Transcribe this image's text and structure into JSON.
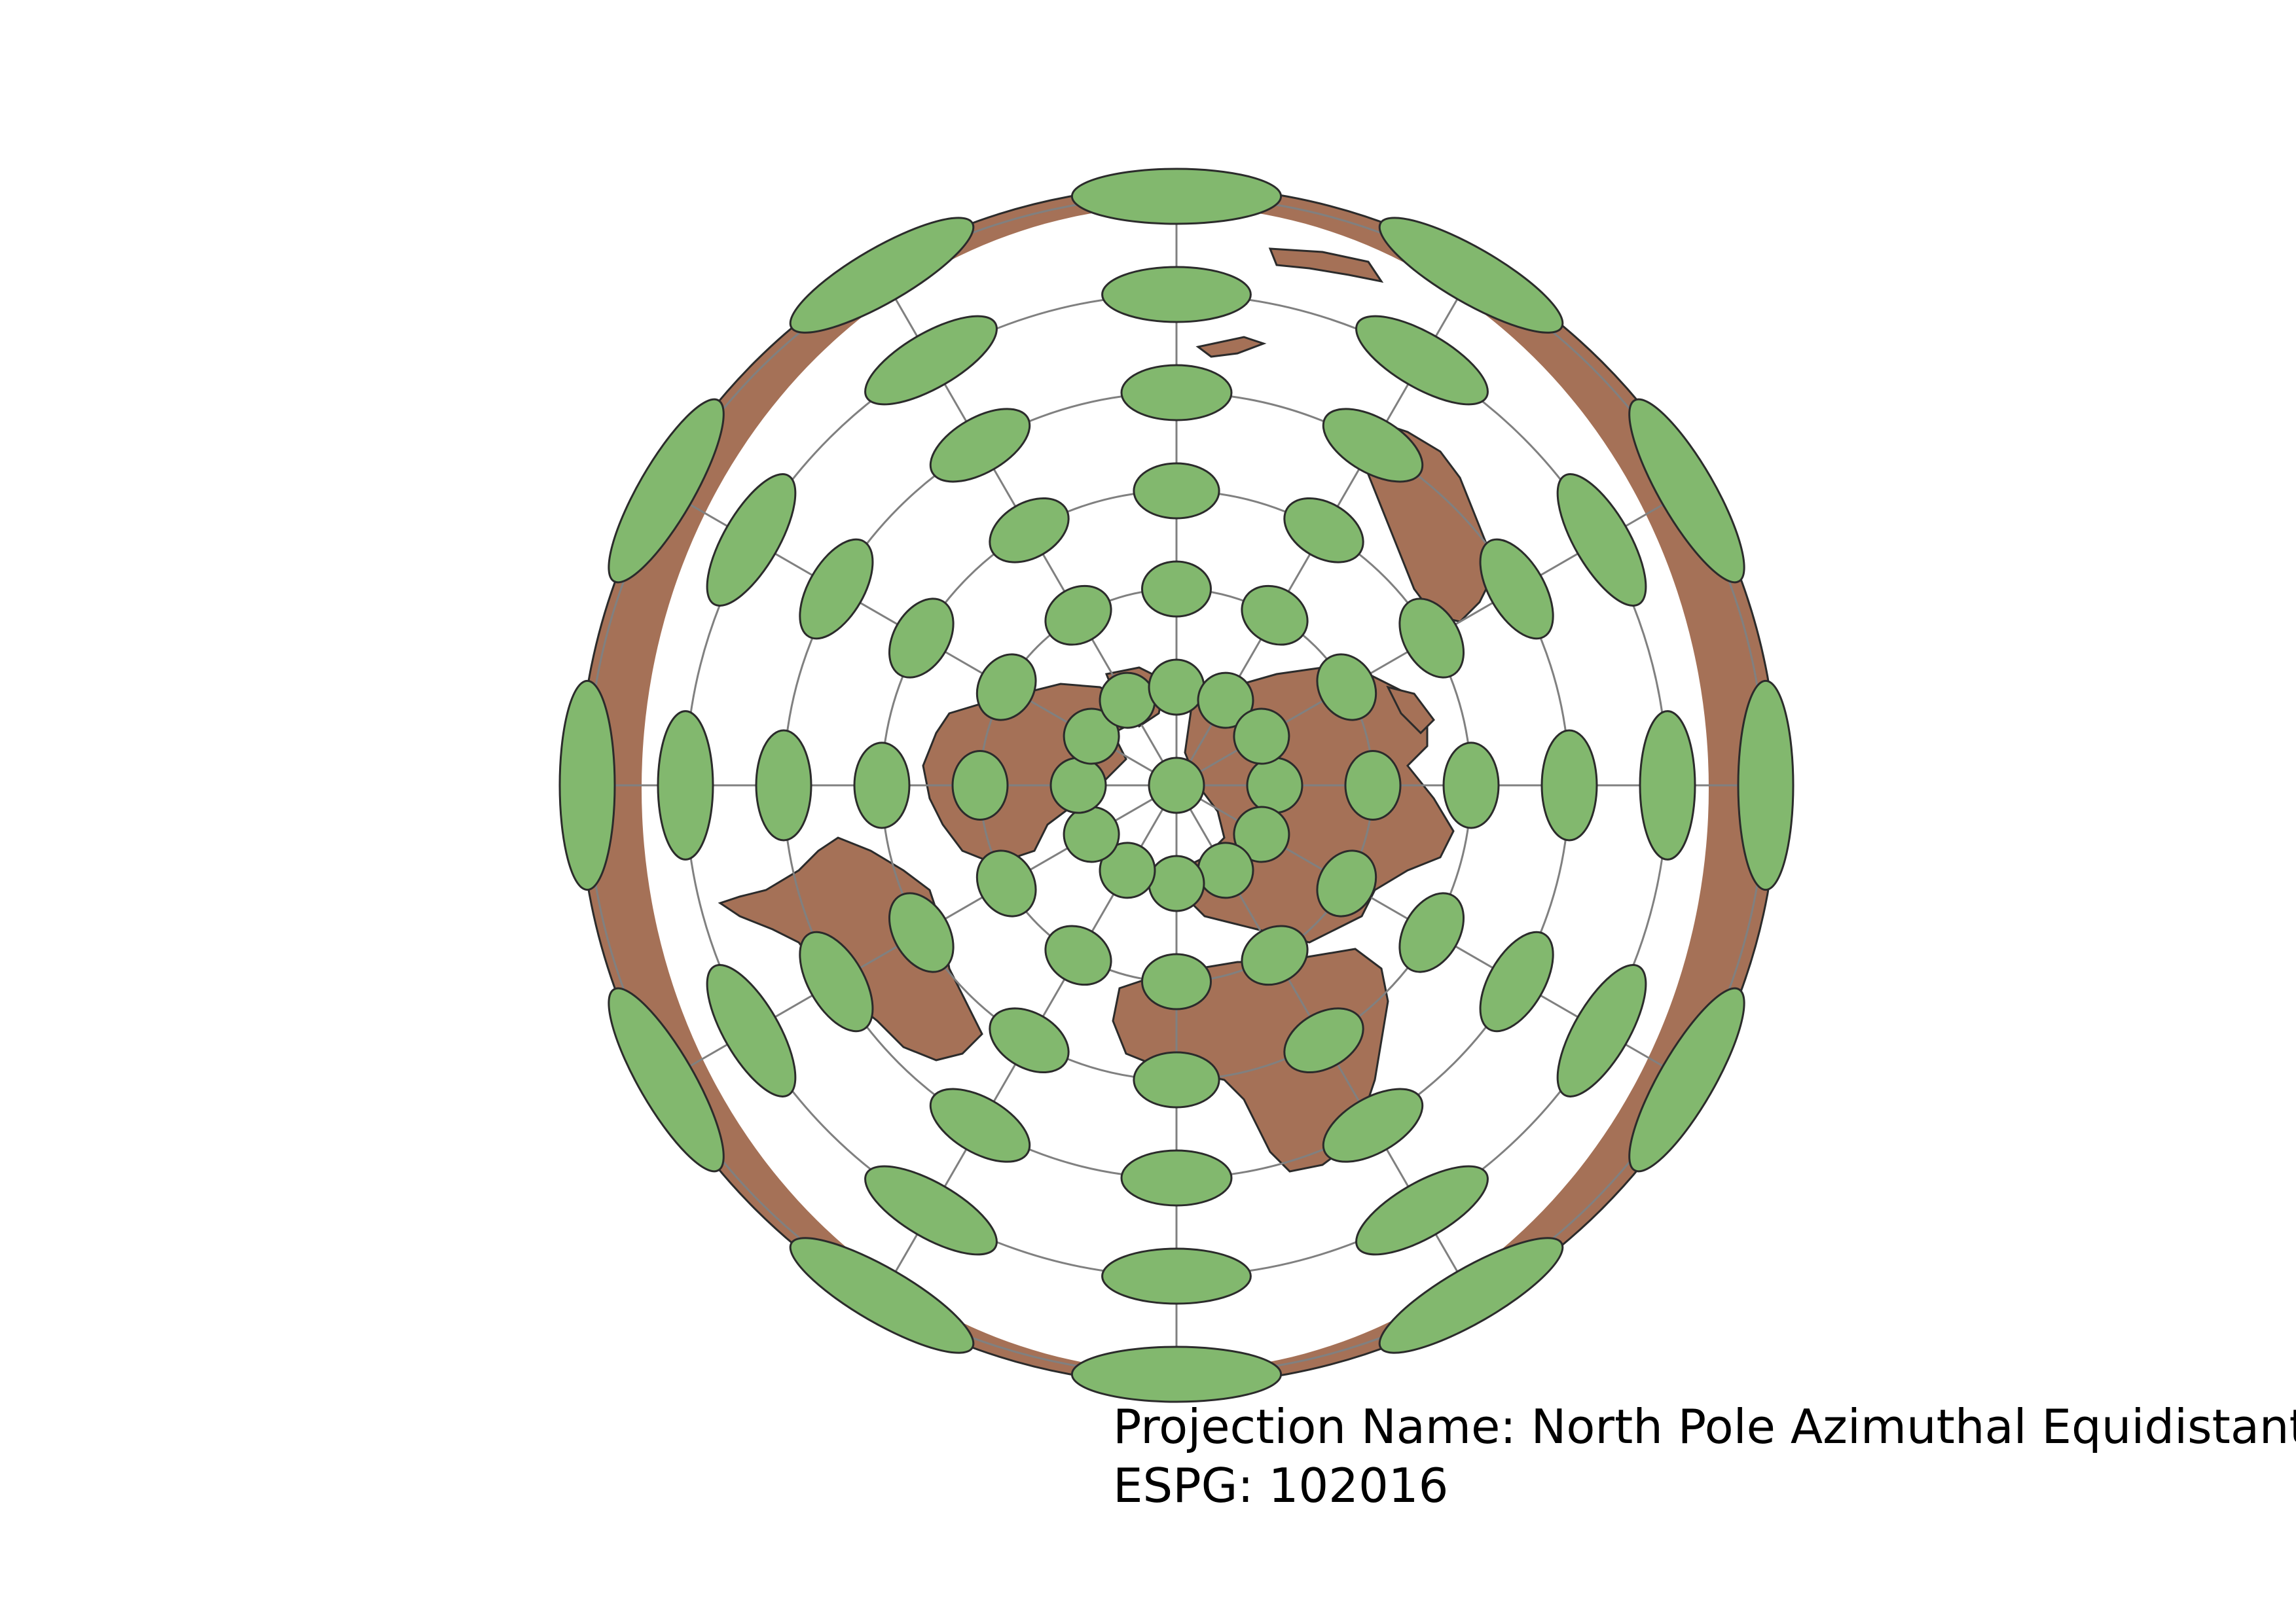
{
  "map": {
    "projection_name_label": "Projection Name:",
    "projection_name": "North Pole Azimuthal Equidistant",
    "code_label": "ESPG:",
    "code": "102016",
    "colors": {
      "land": "#a57157",
      "ocean": "#ffffff",
      "ellipse_fill": "#82b86e",
      "graticule": "#808080",
      "outline": "#2b2b2b"
    },
    "graticule": {
      "circles": 6,
      "meridians": 12
    },
    "ellipse_rings": [
      {
        "ring": 1,
        "radial_axis": 1.0,
        "tangent_axis": 1.0
      },
      {
        "ring": 2,
        "radial_axis": 1.0,
        "tangent_axis": 1.25
      },
      {
        "ring": 3,
        "radial_axis": 1.0,
        "tangent_axis": 1.55
      },
      {
        "ring": 4,
        "radial_axis": 1.0,
        "tangent_axis": 2.0
      },
      {
        "ring": 5,
        "radial_axis": 1.0,
        "tangent_axis": 2.7
      },
      {
        "ring": 6,
        "radial_axis": 1.0,
        "tangent_axis": 3.8
      }
    ]
  }
}
